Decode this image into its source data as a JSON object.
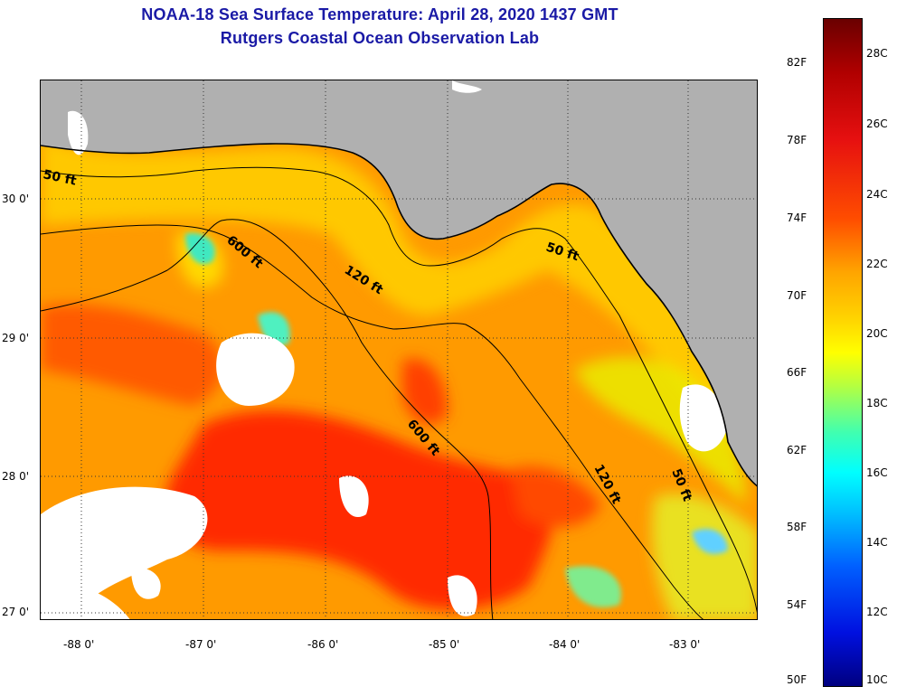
{
  "title_line1": "NOAA-18 Sea Surface Temperature:  April 28, 2020 1437 GMT",
  "title_line2": "Rutgers Coastal Ocean Observation Lab",
  "lat_labels": [
    "30 0'",
    "29 0'",
    "28 0'",
    "27 0'"
  ],
  "lon_labels": [
    "-88 0'",
    "-87 0'",
    "-86 0'",
    "-85 0'",
    "-84 0'",
    "-83 0'"
  ],
  "colorbar_F": [
    "82F",
    "78F",
    "74F",
    "70F",
    "66F",
    "62F",
    "58F",
    "54F",
    "50F"
  ],
  "colorbar_C": [
    "28C",
    "26C",
    "24C",
    "22C",
    "20C",
    "18C",
    "16C",
    "14C",
    "12C",
    "10C"
  ],
  "contour_labels": [
    "50 ft",
    "600 ft",
    "120 ft",
    "50 ft",
    "600 ft",
    "120 ft",
    "50 ft"
  ],
  "colors": {
    "land": "#b0b0b0",
    "cloud": "#ffffff",
    "sst_warm": "#ff2a00",
    "sst_mid": "#ff9a00",
    "sst_cool": "#ffe000",
    "title": "#1a1aa6"
  }
}
